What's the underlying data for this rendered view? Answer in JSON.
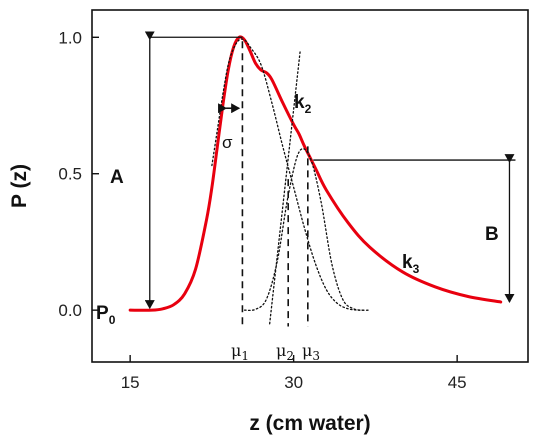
{
  "chart_data": {
    "type": "line",
    "xlabel": "z (cm water)",
    "ylabel": "P (z)",
    "xlim": [
      11.5,
      51.5
    ],
    "ylim": [
      -0.19,
      1.1
    ],
    "xticks": [
      15,
      30,
      45
    ],
    "yticks": [
      0.0,
      0.5,
      1.0
    ],
    "xtick_labels": [
      "15",
      "30",
      "45"
    ],
    "ytick_labels": [
      "0.0",
      "0.5",
      "1.0"
    ],
    "series": [
      {
        "style": "solid",
        "color": "#e8000f",
        "x": [
          15,
          17,
          18,
          19,
          20,
          21,
          22,
          22.5,
          23,
          23.5,
          24,
          24.5,
          25,
          25.5,
          26,
          26.5,
          27,
          27.5,
          28,
          29,
          30,
          30.5,
          31,
          32,
          33,
          35,
          37,
          40,
          43,
          46,
          49
        ],
        "y": [
          0.0,
          0.0,
          0.005,
          0.02,
          0.06,
          0.15,
          0.33,
          0.45,
          0.6,
          0.75,
          0.88,
          0.965,
          1.0,
          0.99,
          0.95,
          0.905,
          0.88,
          0.87,
          0.845,
          0.76,
          0.68,
          0.645,
          0.6,
          0.52,
          0.44,
          0.32,
          0.23,
          0.14,
          0.085,
          0.05,
          0.03
        ]
      },
      {
        "style": "dotted",
        "x": [
          22.5,
          23,
          23.5,
          24,
          24.5,
          25,
          25.5,
          26,
          27,
          28,
          29,
          30,
          31,
          32,
          33,
          34,
          35,
          36,
          37
        ],
        "y": [
          0.53,
          0.66,
          0.79,
          0.9,
          0.96,
          0.99,
          0.99,
          0.965,
          0.9,
          0.76,
          0.6,
          0.45,
          0.3,
          0.17,
          0.075,
          0.025,
          0.005,
          0.0,
          0.0
        ]
      },
      {
        "style": "dotted",
        "x": [
          25.5,
          26.5,
          27.5,
          28.5,
          29.5,
          30.5,
          31.5,
          32.5,
          33.5,
          34.5,
          35.5,
          36.5
        ],
        "y": [
          0.0,
          0.003,
          0.04,
          0.18,
          0.42,
          0.58,
          0.56,
          0.4,
          0.17,
          0.04,
          0.005,
          0.0
        ]
      },
      {
        "style": "dotted",
        "x": [
          27.8,
          30.6
        ],
        "y": [
          -0.05,
          0.95
        ]
      }
    ],
    "annotations": {
      "A": "A",
      "B": "B",
      "sigma": "σ",
      "k2": "k",
      "k2_sub": "2",
      "k3": "k",
      "k3_sub": "3",
      "P0": "P",
      "P0_sub": "0",
      "mu1": "μ",
      "mu1_sub": "1",
      "mu2": "μ",
      "mu2_sub": "2",
      "mu3": "μ",
      "mu3_sub": "3"
    },
    "markers": {
      "mu1_x": 25.3,
      "mu2_x": 29.5,
      "mu3_x": 31.3,
      "A_level": 1.0,
      "B_level": 0.55,
      "A_arrow_x": 16.8,
      "B_arrow_x": 49.8
    }
  }
}
